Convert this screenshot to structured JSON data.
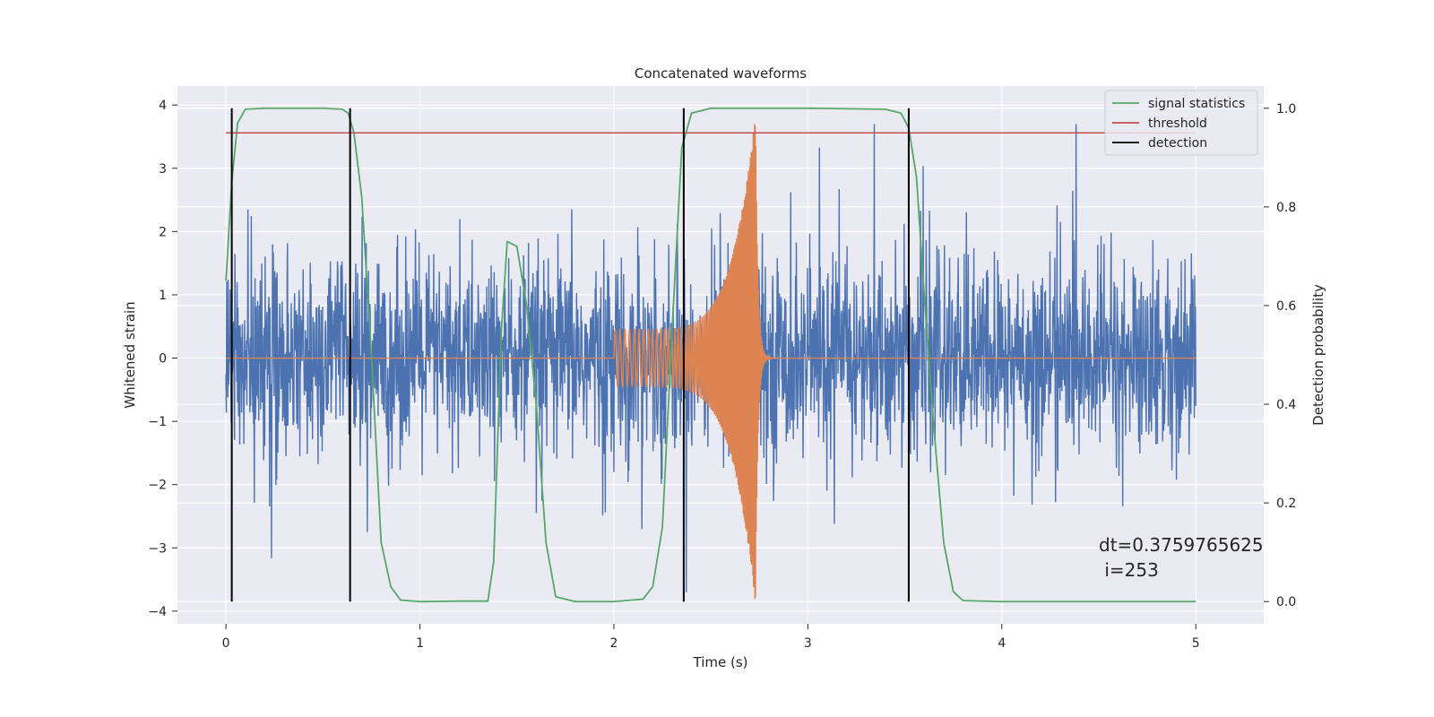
{
  "chart_data": {
    "type": "line",
    "title": "Concatenated waveforms",
    "xlabel": "Time (s)",
    "ylabel": "Whitened strain",
    "ylabel_right": "Detection probability",
    "xlim": [
      -0.25,
      5.35
    ],
    "ylim": [
      -4.2,
      4.3
    ],
    "ylim_right": [
      -0.045,
      1.045
    ],
    "x_ticks": [
      0,
      1,
      2,
      3,
      4,
      5
    ],
    "x_tick_labels": [
      "0",
      "1",
      "2",
      "3",
      "4",
      "5"
    ],
    "y_ticks": [
      -4,
      -3,
      -2,
      -1,
      0,
      1,
      2,
      3,
      4
    ],
    "y_tick_labels": [
      "−4",
      "−3",
      "−2",
      "−1",
      "0",
      "1",
      "2",
      "3",
      "4"
    ],
    "y_ticks_right": [
      0.0,
      0.2,
      0.4,
      0.6,
      0.8,
      1.0
    ],
    "y_tick_labels_right": [
      "0.0",
      "0.2",
      "0.4",
      "0.6",
      "0.8",
      "1.0"
    ],
    "grid": true,
    "legend_position": "top-right",
    "colors": {
      "strain": "#4c72b0",
      "injected_signal": "#dd8452",
      "signal_statistics": "#55a868",
      "threshold": "#c44e52",
      "detection": "#000000",
      "background": "#eaeaf2",
      "grid": "#ffffff"
    },
    "strain": {
      "x_range": [
        0,
        5
      ],
      "amplitude_envelope": 1.0,
      "peak_range": [
        -3.7,
        3.7
      ]
    },
    "injected_signal": {
      "start": 2.0,
      "merger": 2.73,
      "ringdown_end": 3.0,
      "start_amplitude": 0.45,
      "peak_amplitude": 3.9
    },
    "signal_statistics": {
      "axis": "right",
      "x": [
        0.0,
        0.03,
        0.06,
        0.1,
        0.2,
        0.5,
        0.6,
        0.63,
        0.66,
        0.7,
        0.75,
        0.8,
        0.85,
        0.9,
        1.0,
        1.2,
        1.35,
        1.38,
        1.42,
        1.45,
        1.5,
        1.55,
        1.6,
        1.65,
        1.7,
        1.8,
        2.0,
        2.15,
        2.2,
        2.25,
        2.3,
        2.35,
        2.4,
        2.5,
        3.0,
        3.4,
        3.48,
        3.52,
        3.56,
        3.6,
        3.65,
        3.7,
        3.75,
        3.8,
        4.0,
        4.5,
        5.0
      ],
      "y": [
        0.65,
        0.85,
        0.97,
        0.998,
        1.0,
        1.0,
        0.998,
        0.99,
        0.95,
        0.82,
        0.5,
        0.12,
        0.03,
        0.003,
        0.0,
        0.001,
        0.001,
        0.08,
        0.55,
        0.73,
        0.72,
        0.6,
        0.4,
        0.12,
        0.01,
        0.0,
        0.0,
        0.005,
        0.03,
        0.15,
        0.55,
        0.92,
        0.99,
        1.0,
        1.0,
        0.998,
        0.99,
        0.96,
        0.86,
        0.62,
        0.35,
        0.12,
        0.02,
        0.002,
        0.0,
        0.0,
        0.0
      ],
      "label": "signal statistics"
    },
    "threshold": {
      "axis": "right",
      "value": 0.95,
      "x_range": [
        0,
        5
      ],
      "label": "threshold"
    },
    "detection": {
      "axis": "right",
      "x": [
        0.03,
        0.64,
        2.36,
        3.52
      ],
      "y_range": [
        0,
        1
      ],
      "label": "detection"
    },
    "legend": [
      {
        "label": "signal statistics",
        "color": "#55a868"
      },
      {
        "label": "threshold",
        "color": "#c44e52"
      },
      {
        "label": "detection",
        "color": "#000000"
      }
    ],
    "annotation": {
      "line1": "dt=0.3759765625",
      "line2": " i=253"
    }
  }
}
